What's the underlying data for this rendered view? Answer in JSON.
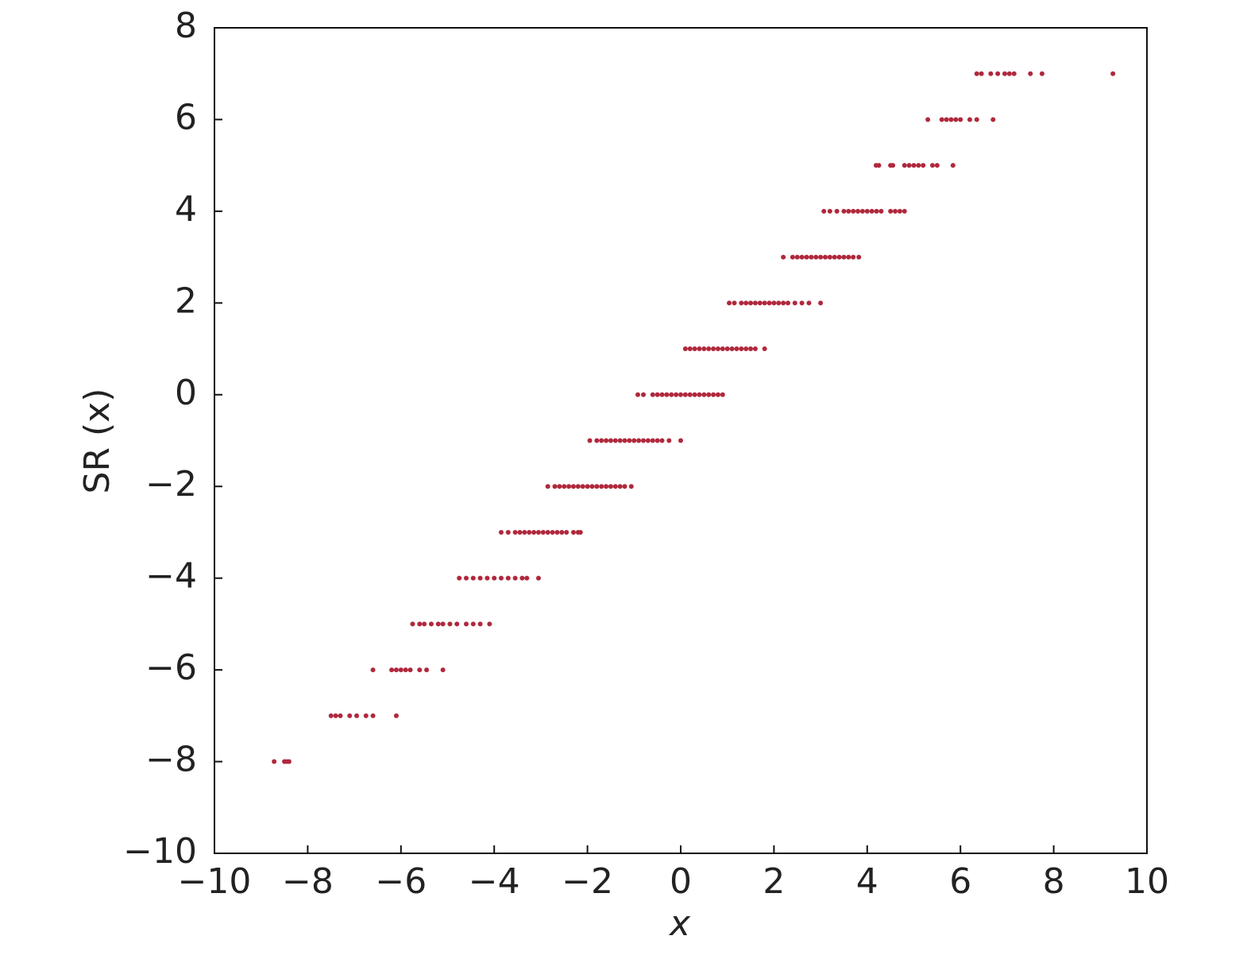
{
  "chart_data": {
    "type": "scatter",
    "xlabel": "x",
    "ylabel": "SR (x)",
    "xlim": [
      -10,
      10
    ],
    "ylim": [
      -10,
      8
    ],
    "xticks": [
      {
        "value": -10,
        "label": "−10"
      },
      {
        "value": -8,
        "label": "−8"
      },
      {
        "value": -6,
        "label": "−6"
      },
      {
        "value": -4,
        "label": "−4"
      },
      {
        "value": -2,
        "label": "−2"
      },
      0,
      2,
      4,
      6,
      8,
      10
    ],
    "yticks": [
      {
        "value": -10,
        "label": "−10"
      },
      {
        "value": -8,
        "label": "−8"
      },
      {
        "value": -6,
        "label": "−6"
      },
      {
        "value": -4,
        "label": "−4"
      },
      {
        "value": -2,
        "label": "−2"
      },
      0,
      2,
      4,
      6,
      8
    ],
    "color": "#b0283c",
    "x": [
      -8.72,
      -8.5,
      -8.45,
      -8.4,
      -7.5,
      -7.4,
      -7.3,
      -7.1,
      -6.95,
      -6.75,
      -6.6,
      -6.1,
      -6.6,
      -6.2,
      -6.1,
      -6.0,
      -5.9,
      -5.8,
      -5.6,
      -5.45,
      -5.1,
      -5.75,
      -5.6,
      -5.5,
      -5.35,
      -5.2,
      -5.1,
      -4.95,
      -4.8,
      -4.6,
      -4.45,
      -4.3,
      -4.1,
      -4.75,
      -4.6,
      -4.45,
      -4.3,
      -4.15,
      -4.0,
      -3.85,
      -3.7,
      -3.55,
      -3.4,
      -3.3,
      -3.05,
      -3.85,
      -3.7,
      -3.55,
      -3.45,
      -3.35,
      -3.25,
      -3.15,
      -3.05,
      -2.95,
      -2.85,
      -2.75,
      -2.65,
      -2.55,
      -2.45,
      -2.3,
      -2.2,
      -2.15,
      -2.85,
      -2.7,
      -2.6,
      -2.5,
      -2.4,
      -2.3,
      -2.2,
      -2.1,
      -2.0,
      -1.9,
      -1.8,
      -1.7,
      -1.6,
      -1.5,
      -1.4,
      -1.3,
      -1.2,
      -1.06,
      -1.95,
      -1.8,
      -1.7,
      -1.6,
      -1.5,
      -1.4,
      -1.3,
      -1.2,
      -1.1,
      -1.0,
      -0.9,
      -0.8,
      -0.7,
      -0.6,
      -0.5,
      -0.4,
      -0.25,
      0.0,
      -0.92,
      -0.8,
      -0.6,
      -0.5,
      -0.4,
      -0.3,
      -0.2,
      -0.1,
      0.0,
      0.1,
      0.2,
      0.3,
      0.4,
      0.5,
      0.6,
      0.7,
      0.8,
      0.9,
      0.1,
      0.2,
      0.3,
      0.4,
      0.5,
      0.6,
      0.7,
      0.8,
      0.9,
      1.0,
      1.1,
      1.2,
      1.3,
      1.4,
      1.5,
      1.6,
      1.8,
      1.04,
      1.15,
      1.3,
      1.4,
      1.5,
      1.6,
      1.7,
      1.8,
      1.9,
      2.0,
      2.1,
      2.2,
      2.3,
      2.45,
      2.6,
      2.75,
      3.0,
      2.2,
      2.4,
      2.5,
      2.6,
      2.7,
      2.8,
      2.9,
      3.0,
      3.1,
      3.2,
      3.3,
      3.4,
      3.5,
      3.6,
      3.7,
      3.82,
      3.07,
      3.2,
      3.35,
      3.5,
      3.6,
      3.7,
      3.8,
      3.9,
      4.0,
      4.1,
      4.2,
      4.3,
      4.5,
      4.6,
      4.7,
      4.8,
      4.19,
      4.25,
      4.5,
      4.55,
      4.8,
      4.9,
      5.0,
      5.1,
      5.2,
      5.4,
      5.5,
      5.84,
      5.3,
      5.6,
      5.7,
      5.8,
      5.9,
      6.0,
      6.2,
      6.35,
      6.7,
      6.35,
      6.45,
      6.65,
      6.8,
      6.95,
      7.05,
      7.15,
      7.5,
      7.75,
      9.27
    ],
    "values": [
      -8,
      -8,
      -8,
      -8,
      -7,
      -7,
      -7,
      -7,
      -7,
      -7,
      -7,
      -7,
      -6,
      -6,
      -6,
      -6,
      -6,
      -6,
      -6,
      -6,
      -6,
      -5,
      -5,
      -5,
      -5,
      -5,
      -5,
      -5,
      -5,
      -5,
      -5,
      -5,
      -5,
      -4,
      -4,
      -4,
      -4,
      -4,
      -4,
      -4,
      -4,
      -4,
      -4,
      -4,
      -4,
      -3,
      -3,
      -3,
      -3,
      -3,
      -3,
      -3,
      -3,
      -3,
      -3,
      -3,
      -3,
      -3,
      -3,
      -3,
      -3,
      -3,
      -2,
      -2,
      -2,
      -2,
      -2,
      -2,
      -2,
      -2,
      -2,
      -2,
      -2,
      -2,
      -2,
      -2,
      -2,
      -2,
      -2,
      -2,
      -1,
      -1,
      -1,
      -1,
      -1,
      -1,
      -1,
      -1,
      -1,
      -1,
      -1,
      -1,
      -1,
      -1,
      -1,
      -1,
      -1,
      -1,
      0,
      0,
      0,
      0,
      0,
      0,
      0,
      0,
      0,
      0,
      0,
      0,
      0,
      0,
      0,
      0,
      0,
      0,
      1,
      1,
      1,
      1,
      1,
      1,
      1,
      1,
      1,
      1,
      1,
      1,
      1,
      1,
      1,
      1,
      1,
      2,
      2,
      2,
      2,
      2,
      2,
      2,
      2,
      2,
      2,
      2,
      2,
      2,
      2,
      2,
      2,
      2,
      3,
      3,
      3,
      3,
      3,
      3,
      3,
      3,
      3,
      3,
      3,
      3,
      3,
      3,
      3,
      3,
      4,
      4,
      4,
      4,
      4,
      4,
      4,
      4,
      4,
      4,
      4,
      4,
      4,
      4,
      4,
      4,
      5,
      5,
      5,
      5,
      5,
      5,
      5,
      5,
      5,
      5,
      5,
      5,
      6,
      6,
      6,
      6,
      6,
      6,
      6,
      6,
      6,
      7,
      7,
      7,
      7,
      7,
      7,
      7,
      7,
      7,
      7
    ]
  }
}
